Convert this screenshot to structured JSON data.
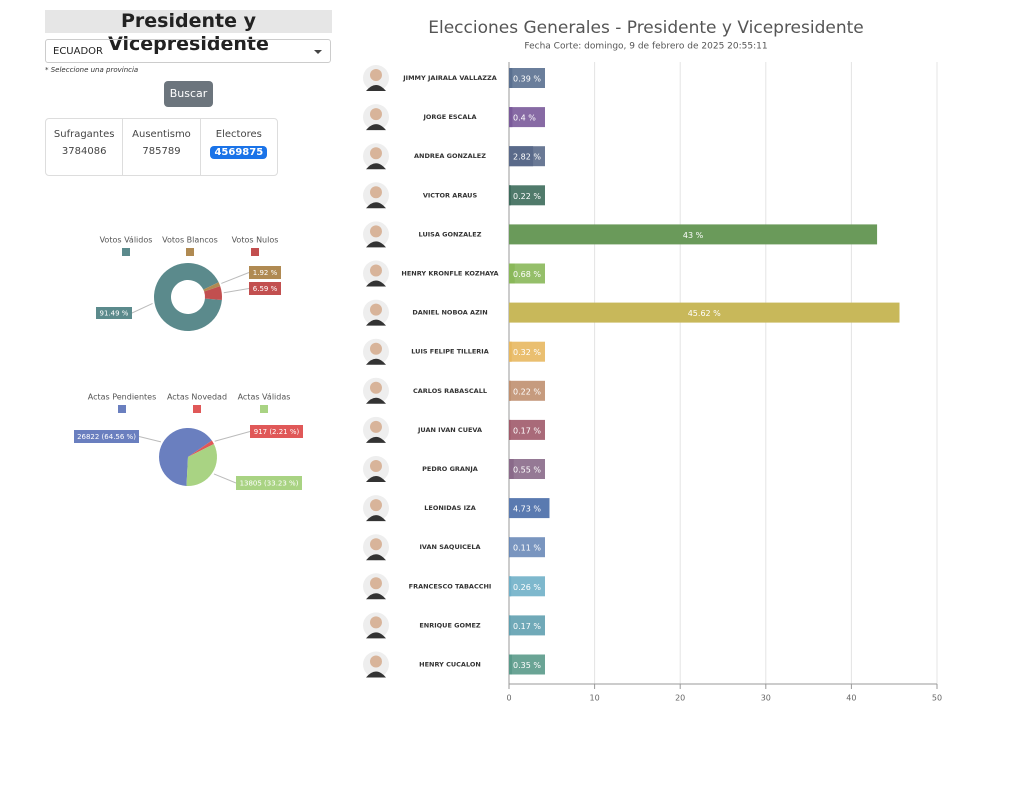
{
  "header": {
    "title": "Presidente y Vicepresidente"
  },
  "filter": {
    "selected": "ECUADOR",
    "hint": "* Seleccione una provincia",
    "button": "Buscar"
  },
  "summary": {
    "labels": [
      "Sufragantes",
      "Ausentismo",
      "Electores"
    ],
    "values": [
      3784086,
      785789,
      4569875
    ]
  },
  "chart_data": [
    {
      "type": "pie",
      "donut": true,
      "categories": [
        "Votos Válidos",
        "Votos Blancos",
        "Votos Nulos"
      ],
      "values": [
        91.49,
        1.92,
        6.59
      ],
      "value_labels": [
        "91.49 %",
        "1.92 %",
        "6.59 %"
      ],
      "colors": [
        "#5b8a8c",
        "#b08a52",
        "#c24f4f"
      ]
    },
    {
      "type": "pie",
      "donut": false,
      "categories": [
        "Actas Pendientes",
        "Actas Novedad",
        "Actas Válidas"
      ],
      "values": [
        26822,
        917,
        13805
      ],
      "value_labels": [
        "26822 (64.56 %)",
        "917 (2.21 %)",
        "13805 (33.23 %)"
      ],
      "colors": [
        "#6a7fbf",
        "#e05858",
        "#a9d383"
      ]
    },
    {
      "type": "bar",
      "orientation": "horizontal",
      "title": "Elecciones Generales - Presidente y Vicepresidente",
      "subtitle": "Fecha Corte: domingo, 9 de febrero de 2025 20:55:11",
      "categories": [
        "JIMMY JAIRALA VALLAZZA",
        "JORGE ESCALA",
        "ANDREA GONZALEZ",
        "VICTOR ARAUS",
        "LUISA GONZALEZ",
        "HENRY KRONFLE KOZHAYA",
        "DANIEL NOBOA AZIN",
        "LUIS FELIPE TILLERIA",
        "CARLOS RABASCALL",
        "JUAN IVAN CUEVA",
        "PEDRO GRANJA",
        "LEONIDAS IZA",
        "IVAN SAQUICELA",
        "FRANCESCO TABACCHI",
        "ENRIQUE GOMEZ",
        "HENRY CUCALON"
      ],
      "values": [
        0.39,
        0.4,
        2.82,
        0.22,
        43,
        0.68,
        45.62,
        0.32,
        0.22,
        0.17,
        0.55,
        4.73,
        0.11,
        0.26,
        0.17,
        0.35
      ],
      "value_labels": [
        "0.39 %",
        "0.4 %",
        "2.82 %",
        "0.22 %",
        "43 %",
        "0.68 %",
        "45.62 %",
        "0.32 %",
        "0.22 %",
        "0.17 %",
        "0.55 %",
        "4.73 %",
        "0.11 %",
        "0.26 %",
        "0.17 %",
        "0.35 %"
      ],
      "colors": [
        "#5a7090",
        "#7a5a9a",
        "#5a6a8a",
        "#3d6b5b",
        "#6a9a5a",
        "#8ab85a",
        "#c8b85a",
        "#e8b860",
        "#c09070",
        "#a05a6a",
        "#8a6a8a",
        "#5a7ab0",
        "#6a8ab8",
        "#70b0c8",
        "#60a0b0",
        "#5a9a8a"
      ],
      "xlim": [
        0,
        50
      ],
      "xticks": [
        0,
        10,
        20,
        30,
        40,
        50
      ],
      "grid": true
    }
  ]
}
